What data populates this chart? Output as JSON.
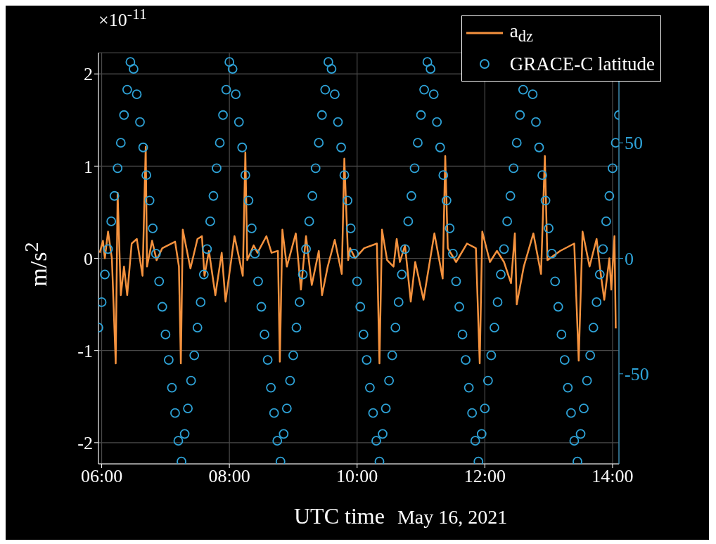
{
  "chart_data": {
    "type": "line",
    "xlabel": "UTC time",
    "ylabel": "m/s$^{2}$",
    "annotations": [
      "×10$^{-11}$",
      "May 16, 2021"
    ],
    "xlim": [
      5.95,
      14.1
    ],
    "xticks": [
      {
        "value": 6,
        "label": "06:00"
      },
      {
        "value": 8,
        "label": "08:00"
      },
      {
        "value": 10,
        "label": "10:00"
      },
      {
        "value": 12,
        "label": "12:00"
      },
      {
        "value": 14,
        "label": "14:00"
      }
    ],
    "ylim": [
      -2.23,
      2.23
    ],
    "yticks": [
      -2,
      -1,
      0,
      1,
      2
    ],
    "y2lim": [
      -89,
      89
    ],
    "y2ticks": [
      -50,
      0,
      50
    ],
    "grid": true,
    "legend": "top right",
    "series": [
      {
        "name": "a$_{dz}$",
        "marker": "none",
        "color": "#f5923e",
        "x": [
          5.97,
          6.02,
          6.05,
          6.1,
          6.16,
          6.22,
          6.25,
          6.3,
          6.35,
          6.4,
          6.47,
          6.55,
          6.64,
          6.69,
          6.71,
          6.79,
          6.86,
          6.95,
          7.15,
          7.21,
          7.24,
          7.27,
          7.39,
          7.5,
          7.57,
          7.61,
          7.68,
          7.78,
          7.88,
          7.94,
          8.08,
          8.21,
          8.25,
          8.28,
          8.38,
          8.44,
          8.58,
          8.66,
          8.76,
          8.79,
          8.83,
          8.9,
          9.04,
          9.12,
          9.2,
          9.29,
          9.4,
          9.45,
          9.54,
          9.65,
          9.76,
          9.8,
          9.86,
          9.89,
          9.97,
          10.11,
          10.31,
          10.35,
          10.39,
          10.47,
          10.57,
          10.62,
          10.67,
          10.75,
          10.84,
          10.91,
          11.04,
          11.21,
          11.34,
          11.38,
          11.42,
          11.55,
          11.72,
          11.86,
          11.92,
          11.96,
          12.08,
          12.19,
          12.3,
          12.41,
          12.47,
          12.5,
          12.61,
          12.76,
          12.88,
          12.94,
          12.98,
          13.18,
          13.4,
          13.47,
          13.53,
          13.64,
          13.75,
          13.8,
          13.87,
          13.95,
          13.98,
          14.03,
          14.05
        ],
        "values": [
          0.06,
          0.19,
          0,
          0.29,
          0,
          -1.14,
          0.71,
          -0.4,
          -0.09,
          -0.4,
          0.16,
          0.21,
          -0.19,
          1.21,
          -0.09,
          0.19,
          -0.02,
          0.11,
          0.18,
          -0.09,
          -1.14,
          0.31,
          -0.11,
          0.21,
          0.24,
          -0.19,
          0.08,
          -0.4,
          0.06,
          -0.47,
          0.24,
          -0.19,
          1.15,
          -0.02,
          0.14,
          0.06,
          0.24,
          0.06,
          0.08,
          -1.12,
          0.31,
          -0.09,
          0.27,
          -0.34,
          0.24,
          -0.29,
          0.08,
          -0.4,
          -0.09,
          0.2,
          -0.17,
          1.08,
          -0.02,
          0.11,
          0,
          0.11,
          0.16,
          -1.14,
          0.31,
          -0.02,
          -0.09,
          0.21,
          -0.04,
          0.14,
          -0.47,
          -0.04,
          -0.45,
          0.27,
          -0.22,
          1.11,
          0.11,
          -0.04,
          0.16,
          0.11,
          -1.14,
          0.29,
          -0.04,
          0.08,
          -0.04,
          -0.27,
          0.27,
          -0.5,
          -0.09,
          0.27,
          -0.17,
          1.11,
          -0.02,
          0.08,
          0.16,
          -1.11,
          0.29,
          -0.09,
          0.21,
          -0.09,
          -0.45,
          0,
          -0.34,
          0.24,
          -0.76
        ]
      },
      {
        "name": "GRACE-C latitude",
        "type": "scatter",
        "marker": "circle",
        "axis": "y2",
        "color": "#2ea3d8",
        "x": [
          5.95,
          6,
          6.05,
          6.1,
          6.15,
          6.2,
          6.25,
          6.3,
          6.35,
          6.4,
          6.45,
          6.5,
          6.55,
          6.6,
          6.65,
          6.7,
          6.75,
          6.8,
          6.85,
          6.9,
          6.95,
          7,
          7.05,
          7.1,
          7.15,
          7.2,
          7.25,
          7.3,
          7.35,
          7.4,
          7.45,
          7.5,
          7.55,
          7.6,
          7.65,
          7.7,
          7.75,
          7.8,
          7.85,
          7.9,
          7.95,
          8,
          8.05,
          8.1,
          8.15,
          8.2,
          8.25,
          8.3,
          8.35,
          8.4,
          8.45,
          8.5,
          8.55,
          8.6,
          8.65,
          8.7,
          8.75,
          8.8,
          8.85,
          8.9,
          8.95,
          9,
          9.05,
          9.1,
          9.15,
          9.2,
          9.25,
          9.3,
          9.35,
          9.4,
          9.45,
          9.5,
          9.55,
          9.6,
          9.65,
          9.7,
          9.75,
          9.8,
          9.85,
          9.9,
          9.95,
          10,
          10.05,
          10.1,
          10.15,
          10.2,
          10.25,
          10.3,
          10.35,
          10.4,
          10.45,
          10.5,
          10.55,
          10.6,
          10.65,
          10.7,
          10.75,
          10.8,
          10.85,
          10.9,
          10.95,
          11,
          11.05,
          11.1,
          11.15,
          11.2,
          11.25,
          11.3,
          11.35,
          11.4,
          11.45,
          11.5,
          11.55,
          11.6,
          11.65,
          11.7,
          11.75,
          11.8,
          11.85,
          11.9,
          11.95,
          12,
          12.05,
          12.1,
          12.15,
          12.2,
          12.25,
          12.3,
          12.35,
          12.4,
          12.45,
          12.5,
          12.55,
          12.6,
          12.65,
          12.7,
          12.75,
          12.8,
          12.85,
          12.9,
          12.95,
          13,
          13.05,
          13.1,
          13.15,
          13.2,
          13.25,
          13.3,
          13.35,
          13.4,
          13.45,
          13.5,
          13.55,
          13.6,
          13.65,
          13.7,
          13.75,
          13.8,
          13.85,
          13.9,
          13.95,
          14,
          14.05,
          14.1
        ],
        "values": [
          -30,
          -19,
          -7,
          4,
          16,
          27,
          39,
          50,
          62,
          73,
          85,
          82,
          71,
          59,
          48,
          36,
          25,
          13,
          2,
          -10,
          -21,
          -33,
          -44,
          -56,
          -67,
          -79,
          -88,
          -76,
          -65,
          -53,
          -42,
          -30,
          -19,
          -7,
          4,
          16,
          27,
          39,
          50,
          62,
          73,
          85,
          82,
          71,
          59,
          48,
          36,
          25,
          13,
          2,
          -10,
          -21,
          -33,
          -44,
          -56,
          -67,
          -79,
          -88,
          -76,
          -65,
          -53,
          -42,
          -30,
          -19,
          -7,
          4,
          16,
          27,
          39,
          50,
          62,
          73,
          85,
          82,
          71,
          59,
          48,
          36,
          25,
          13,
          2,
          -10,
          -21,
          -33,
          -44,
          -56,
          -67,
          -79,
          -88,
          -76,
          -65,
          -53,
          -42,
          -30,
          -19,
          -7,
          4,
          16,
          27,
          39,
          50,
          62,
          73,
          85,
          82,
          71,
          59,
          48,
          36,
          25,
          13,
          2,
          -10,
          -21,
          -33,
          -44,
          -56,
          -67,
          -79,
          -88,
          -76,
          -65,
          -53,
          -42,
          -30,
          -19,
          -7,
          4,
          16,
          27,
          39,
          50,
          62,
          73,
          null,
          null,
          71,
          59,
          48,
          36,
          25,
          13,
          2,
          -10,
          -21,
          -33,
          -44,
          -56,
          -67,
          -79,
          -88,
          -76,
          -65,
          -53,
          -42,
          -30,
          -19,
          -7,
          4,
          16,
          27,
          39,
          50,
          62
        ]
      }
    ]
  }
}
